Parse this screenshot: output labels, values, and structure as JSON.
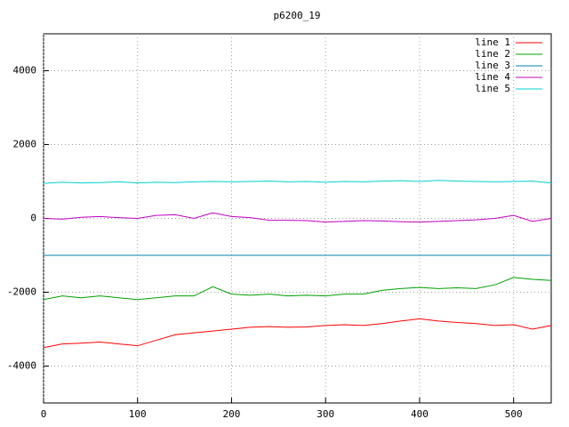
{
  "chart_data": {
    "type": "line",
    "title": "p6200_19",
    "x": [
      0,
      20,
      40,
      60,
      80,
      100,
      120,
      140,
      160,
      180,
      200,
      220,
      240,
      260,
      280,
      300,
      320,
      340,
      360,
      380,
      400,
      420,
      440,
      460,
      480,
      500,
      520,
      540
    ],
    "series": [
      {
        "name": "line 1",
        "color": "#ff0000",
        "values": [
          -3500,
          -3400,
          -3380,
          -3350,
          -3400,
          -3450,
          -3300,
          -3150,
          -3100,
          -3050,
          -3000,
          -2950,
          -2930,
          -2950,
          -2940,
          -2900,
          -2880,
          -2900,
          -2850,
          -2780,
          -2720,
          -2780,
          -2820,
          -2850,
          -2900,
          -2880,
          -3000,
          -2900
        ]
      },
      {
        "name": "line 2",
        "color": "#00a000",
        "values": [
          -2200,
          -2100,
          -2150,
          -2100,
          -2150,
          -2200,
          -2150,
          -2100,
          -2100,
          -1850,
          -2050,
          -2080,
          -2050,
          -2100,
          -2080,
          -2100,
          -2050,
          -2050,
          -1950,
          -1900,
          -1870,
          -1900,
          -1880,
          -1900,
          -1800,
          -1600,
          -1650,
          -1680
        ]
      },
      {
        "name": "line 3",
        "color": "#0080b0",
        "values": [
          -1000,
          -1000,
          -1000,
          -1000,
          -1000,
          -1000,
          -1000,
          -1000,
          -1000,
          -1000,
          -1000,
          -1000,
          -1000,
          -1000,
          -1000,
          -1000,
          -1000,
          -1000,
          -1000,
          -1000,
          -1000,
          -1000,
          -1000,
          -1000,
          -1000,
          -1000,
          -1000,
          -1000
        ]
      },
      {
        "name": "line 4",
        "color": "#c000c0",
        "values": [
          0,
          -20,
          30,
          50,
          20,
          0,
          80,
          100,
          0,
          150,
          50,
          20,
          -50,
          -50,
          -60,
          -100,
          -80,
          -60,
          -70,
          -90,
          -100,
          -80,
          -60,
          -40,
          0,
          80,
          -80,
          0
        ]
      },
      {
        "name": "line 5",
        "color": "#00d0d0",
        "values": [
          950,
          980,
          960,
          970,
          990,
          960,
          980,
          970,
          990,
          1000,
          990,
          1000,
          1010,
          990,
          1000,
          980,
          1000,
          990,
          1010,
          1020,
          1000,
          1030,
          1010,
          1000,
          990,
          1000,
          1010,
          960
        ]
      }
    ],
    "xlim": [
      0,
      540
    ],
    "xticks": [
      0,
      100,
      200,
      300,
      400,
      500
    ],
    "ylim": [
      -5000,
      5000
    ],
    "yticks": [
      -4000,
      -2000,
      0,
      2000,
      4000
    ],
    "grid": true,
    "legend": "top-right"
  }
}
